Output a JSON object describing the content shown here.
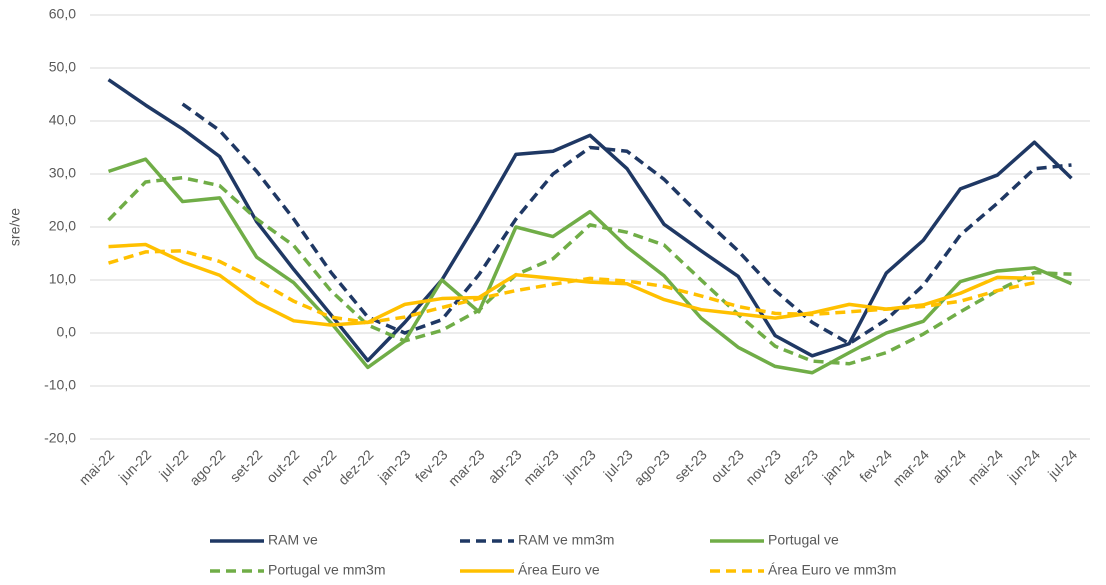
{
  "chart_data": {
    "type": "line",
    "y_label": "sre/ve",
    "categories": [
      "mai-22",
      "jun-22",
      "jul-22",
      "ago-22",
      "set-22",
      "out-22",
      "nov-22",
      "dez-22",
      "jan-23",
      "fev-23",
      "mar-23",
      "abr-23",
      "mai-23",
      "jun-23",
      "jul-23",
      "ago-23",
      "set-23",
      "out-23",
      "nov-23",
      "dez-23",
      "jan-24",
      "fev-24",
      "mar-24",
      "abr-24",
      "mai-24",
      "jun-24",
      "jul-24"
    ],
    "ylim": [
      -20,
      60
    ],
    "yticks": [
      {
        "value": -20,
        "label": "-20,0"
      },
      {
        "value": -10,
        "label": "-10,0"
      },
      {
        "value": 0,
        "label": "0,0"
      },
      {
        "value": 10,
        "label": "10,0"
      },
      {
        "value": 20,
        "label": "20,0"
      },
      {
        "value": 30,
        "label": "30,0"
      },
      {
        "value": 40,
        "label": "40,0"
      },
      {
        "value": 50,
        "label": "50,0"
      },
      {
        "value": 60,
        "label": "60,0"
      }
    ],
    "grid": true,
    "legend": "bottom",
    "series": [
      {
        "name": "RAM ve",
        "color": "#1f3864",
        "dash": false,
        "values": [
          47.8,
          43,
          38.5,
          33.3,
          21,
          12,
          3.5,
          -5.2,
          2,
          10,
          21.5,
          33.7,
          34.3,
          37.3,
          31,
          20.5,
          15.5,
          10.7,
          -0.5,
          -4.3,
          -2,
          11.3,
          17.5,
          27.2,
          29.8,
          36,
          29.2
        ]
      },
      {
        "name": "RAM ve mm3m",
        "color": "#1f3864",
        "dash": true,
        "values": [
          null,
          null,
          43.2,
          38.2,
          30.5,
          21.5,
          11.5,
          3,
          0,
          2.5,
          11,
          21.5,
          30,
          35,
          34.3,
          29,
          22,
          15.5,
          8,
          2,
          -2,
          2.5,
          9,
          18.5,
          24.5,
          31,
          31.7
        ]
      },
      {
        "name": "Portugal ve",
        "color": "#70ad47",
        "dash": false,
        "values": [
          30.5,
          32.8,
          24.8,
          25.5,
          14.3,
          9.5,
          2,
          -6.5,
          -1.5,
          10,
          4,
          20,
          18.2,
          22.9,
          16.2,
          10.8,
          2.8,
          -2.7,
          -6.3,
          -7.5,
          -3.7,
          0,
          2.2,
          9.7,
          11.7,
          12.3,
          9.3
        ]
      },
      {
        "name": "Portugal ve mm3m",
        "color": "#70ad47",
        "dash": true,
        "values": [
          21.3,
          28.5,
          29.3,
          27.8,
          21.5,
          16.5,
          8,
          1.5,
          -1.5,
          0.5,
          4.3,
          11,
          14,
          20.4,
          19,
          16.6,
          10,
          3.5,
          -2.5,
          -5.3,
          -5.8,
          -3.7,
          -0.2,
          4,
          8,
          11.4,
          11.1
        ]
      },
      {
        "name": "Área Euro ve",
        "color": "#ffc000",
        "dash": false,
        "values": [
          16.3,
          16.7,
          13.4,
          10.9,
          5.8,
          2.3,
          1.5,
          2,
          5.4,
          6.5,
          6.7,
          11,
          10.3,
          9.6,
          9.3,
          6.3,
          4.4,
          3.6,
          2.8,
          3.8,
          5.4,
          4.5,
          5.3,
          7.5,
          10.5,
          10.3,
          null
        ]
      },
      {
        "name": "Área Euro ve mm3m",
        "color": "#ffc000",
        "dash": true,
        "values": [
          13.2,
          15.3,
          15.5,
          13.5,
          10,
          6,
          3,
          2,
          3,
          4.8,
          6.5,
          8,
          9.2,
          10.3,
          9.8,
          8.8,
          7,
          5,
          3.7,
          3.5,
          4,
          4.5,
          5,
          6,
          8,
          9.5,
          null
        ]
      }
    ]
  }
}
